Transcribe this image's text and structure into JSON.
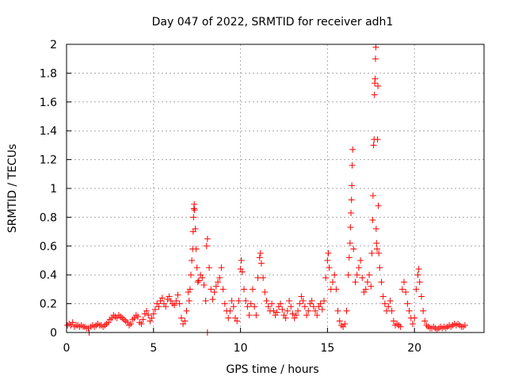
{
  "chart_data": {
    "type": "scatter",
    "title": "Day 047 of 2022, SRMTID for receiver adh1",
    "xlabel": "GPS time / hours",
    "ylabel": "SRMTID / TECUs",
    "xlim": [
      0,
      24
    ],
    "ylim": [
      0,
      2
    ],
    "x_ticks": [
      "0",
      "5",
      "10",
      "15",
      "20"
    ],
    "y_ticks": [
      "0",
      "0.2",
      "0.4",
      "0.6",
      "0.8",
      "1",
      "1.2",
      "1.4",
      "1.6",
      "1.8",
      "2"
    ],
    "grid": true,
    "marker": "+",
    "series": [
      {
        "name": "adh1",
        "color": "#ff0000",
        "points": [
          [
            0.05,
            0.05
          ],
          [
            0.15,
            0.06
          ],
          [
            0.25,
            0.05
          ],
          [
            0.35,
            0.07
          ],
          [
            0.45,
            0.04
          ],
          [
            0.55,
            0.05
          ],
          [
            0.65,
            0.05
          ],
          [
            0.75,
            0.04
          ],
          [
            0.85,
            0.05
          ],
          [
            0.95,
            0.04
          ],
          [
            1.05,
            0.04
          ],
          [
            1.15,
            0.03
          ],
          [
            1.25,
            0.03
          ],
          [
            1.3,
            0.0
          ],
          [
            1.4,
            0.04
          ],
          [
            1.5,
            0.05
          ],
          [
            1.6,
            0.04
          ],
          [
            1.7,
            0.05
          ],
          [
            1.8,
            0.06
          ],
          [
            1.9,
            0.05
          ],
          [
            2.0,
            0.05
          ],
          [
            2.1,
            0.04
          ],
          [
            2.2,
            0.05
          ],
          [
            2.3,
            0.06
          ],
          [
            2.4,
            0.07
          ],
          [
            2.5,
            0.09
          ],
          [
            2.6,
            0.1
          ],
          [
            2.7,
            0.12
          ],
          [
            2.8,
            0.11
          ],
          [
            2.9,
            0.1
          ],
          [
            3.0,
            0.12
          ],
          [
            3.1,
            0.11
          ],
          [
            3.2,
            0.1
          ],
          [
            3.3,
            0.09
          ],
          [
            3.4,
            0.08
          ],
          [
            3.5,
            0.07
          ],
          [
            3.6,
            0.05
          ],
          [
            3.7,
            0.06
          ],
          [
            3.8,
            0.09
          ],
          [
            3.9,
            0.1
          ],
          [
            4.0,
            0.12
          ],
          [
            4.1,
            0.11
          ],
          [
            4.2,
            0.07
          ],
          [
            4.3,
            0.06
          ],
          [
            4.4,
            0.09
          ],
          [
            4.5,
            0.13
          ],
          [
            4.6,
            0.15
          ],
          [
            4.7,
            0.12
          ],
          [
            4.8,
            0.08
          ],
          [
            4.9,
            0.1
          ],
          [
            5.0,
            0.13
          ],
          [
            5.1,
            0.16
          ],
          [
            5.2,
            0.2
          ],
          [
            5.3,
            0.18
          ],
          [
            5.4,
            0.22
          ],
          [
            5.5,
            0.24
          ],
          [
            5.6,
            0.2
          ],
          [
            5.7,
            0.18
          ],
          [
            5.8,
            0.23
          ],
          [
            5.9,
            0.25
          ],
          [
            6.0,
            0.22
          ],
          [
            6.1,
            0.2
          ],
          [
            6.2,
            0.19
          ],
          [
            6.3,
            0.22
          ],
          [
            6.4,
            0.26
          ],
          [
            6.5,
            0.2
          ],
          [
            6.6,
            0.1
          ],
          [
            6.7,
            0.06
          ],
          [
            6.8,
            0.08
          ],
          [
            6.9,
            0.15
          ],
          [
            7.0,
            0.28
          ],
          [
            7.05,
            0.22
          ],
          [
            7.1,
            0.3
          ],
          [
            7.15,
            0.4
          ],
          [
            7.2,
            0.5
          ],
          [
            7.25,
            0.58
          ],
          [
            7.28,
            0.7
          ],
          [
            7.3,
            0.8
          ],
          [
            7.32,
            0.86
          ],
          [
            7.34,
            0.89
          ],
          [
            7.36,
            0.85
          ],
          [
            7.4,
            0.72
          ],
          [
            7.45,
            0.58
          ],
          [
            7.5,
            0.45
          ],
          [
            7.55,
            0.35
          ],
          [
            7.6,
            0.36
          ],
          [
            7.7,
            0.4
          ],
          [
            7.8,
            0.38
          ],
          [
            7.9,
            0.33
          ],
          [
            8.0,
            0.22
          ],
          [
            8.05,
            0.6
          ],
          [
            8.1,
            0.65
          ],
          [
            8.1,
            0.0
          ],
          [
            8.2,
            0.45
          ],
          [
            8.3,
            0.3
          ],
          [
            8.4,
            0.23
          ],
          [
            8.5,
            0.28
          ],
          [
            8.6,
            0.32
          ],
          [
            8.7,
            0.35
          ],
          [
            8.8,
            0.38
          ],
          [
            8.9,
            0.45
          ],
          [
            9.0,
            0.3
          ],
          [
            9.1,
            0.2
          ],
          [
            9.2,
            0.15
          ],
          [
            9.3,
            0.1
          ],
          [
            9.4,
            0.15
          ],
          [
            9.5,
            0.22
          ],
          [
            9.6,
            0.18
          ],
          [
            9.7,
            0.1
          ],
          [
            9.8,
            0.08
          ],
          [
            9.9,
            0.22
          ],
          [
            10.0,
            0.44
          ],
          [
            10.05,
            0.5
          ],
          [
            10.1,
            0.42
          ],
          [
            10.2,
            0.3
          ],
          [
            10.3,
            0.22
          ],
          [
            10.4,
            0.18
          ],
          [
            10.5,
            0.12
          ],
          [
            10.6,
            0.2
          ],
          [
            10.7,
            0.3
          ],
          [
            10.8,
            0.18
          ],
          [
            10.9,
            0.12
          ],
          [
            11.0,
            0.38
          ],
          [
            11.1,
            0.52
          ],
          [
            11.15,
            0.55
          ],
          [
            11.2,
            0.48
          ],
          [
            11.3,
            0.38
          ],
          [
            11.4,
            0.28
          ],
          [
            11.5,
            0.22
          ],
          [
            11.6,
            0.18
          ],
          [
            11.7,
            0.15
          ],
          [
            11.8,
            0.2
          ],
          [
            11.9,
            0.15
          ],
          [
            12.0,
            0.12
          ],
          [
            12.1,
            0.14
          ],
          [
            12.2,
            0.18
          ],
          [
            12.3,
            0.2
          ],
          [
            12.4,
            0.16
          ],
          [
            12.5,
            0.12
          ],
          [
            12.6,
            0.1
          ],
          [
            12.7,
            0.15
          ],
          [
            12.8,
            0.22
          ],
          [
            12.9,
            0.18
          ],
          [
            13.0,
            0.13
          ],
          [
            13.1,
            0.1
          ],
          [
            13.2,
            0.12
          ],
          [
            13.3,
            0.15
          ],
          [
            13.4,
            0.2
          ],
          [
            13.5,
            0.25
          ],
          [
            13.6,
            0.22
          ],
          [
            13.7,
            0.18
          ],
          [
            13.8,
            0.12
          ],
          [
            13.9,
            0.15
          ],
          [
            14.0,
            0.2
          ],
          [
            14.1,
            0.22
          ],
          [
            14.2,
            0.18
          ],
          [
            14.3,
            0.15
          ],
          [
            14.4,
            0.12
          ],
          [
            14.5,
            0.18
          ],
          [
            14.6,
            0.2
          ],
          [
            14.7,
            0.16
          ],
          [
            14.8,
            0.22
          ],
          [
            14.9,
            0.38
          ],
          [
            15.0,
            0.5
          ],
          [
            15.05,
            0.55
          ],
          [
            15.1,
            0.45
          ],
          [
            15.2,
            0.3
          ],
          [
            15.3,
            0.35
          ],
          [
            15.4,
            0.4
          ],
          [
            15.5,
            0.3
          ],
          [
            15.6,
            0.15
          ],
          [
            15.7,
            0.08
          ],
          [
            15.8,
            0.05
          ],
          [
            15.9,
            0.04
          ],
          [
            16.0,
            0.06
          ],
          [
            16.1,
            0.15
          ],
          [
            16.2,
            0.4
          ],
          [
            16.25,
            0.52
          ],
          [
            16.3,
            0.62
          ],
          [
            16.32,
            0.73
          ],
          [
            16.35,
            0.83
          ],
          [
            16.38,
            0.92
          ],
          [
            16.4,
            1.02
          ],
          [
            16.42,
            1.16
          ],
          [
            16.45,
            1.27
          ],
          [
            16.5,
            0.58
          ],
          [
            16.6,
            0.35
          ],
          [
            16.7,
            0.4
          ],
          [
            16.8,
            0.45
          ],
          [
            16.9,
            0.5
          ],
          [
            17.0,
            0.38
          ],
          [
            17.1,
            0.28
          ],
          [
            17.2,
            0.3
          ],
          [
            17.3,
            0.35
          ],
          [
            17.4,
            0.4
          ],
          [
            17.5,
            0.32
          ],
          [
            17.55,
            0.55
          ],
          [
            17.6,
            0.78
          ],
          [
            17.62,
            0.95
          ],
          [
            17.65,
            1.3
          ],
          [
            17.68,
            1.34
          ],
          [
            17.7,
            1.65
          ],
          [
            17.72,
            1.73
          ],
          [
            17.74,
            1.76
          ],
          [
            17.76,
            1.9
          ],
          [
            17.78,
            1.98
          ],
          [
            17.8,
            0.72
          ],
          [
            17.82,
            0.62
          ],
          [
            17.85,
            0.58
          ],
          [
            17.88,
            1.34
          ],
          [
            17.9,
            1.71
          ],
          [
            17.92,
            0.88
          ],
          [
            17.95,
            0.55
          ],
          [
            18.0,
            0.45
          ],
          [
            18.1,
            0.35
          ],
          [
            18.2,
            0.25
          ],
          [
            18.3,
            0.2
          ],
          [
            18.4,
            0.15
          ],
          [
            18.5,
            0.18
          ],
          [
            18.6,
            0.22
          ],
          [
            18.7,
            0.15
          ],
          [
            18.8,
            0.08
          ],
          [
            18.9,
            0.05
          ],
          [
            19.0,
            0.06
          ],
          [
            19.1,
            0.05
          ],
          [
            19.2,
            0.04
          ],
          [
            19.3,
            0.3
          ],
          [
            19.4,
            0.35
          ],
          [
            19.5,
            0.28
          ],
          [
            19.6,
            0.2
          ],
          [
            19.7,
            0.15
          ],
          [
            19.8,
            0.1
          ],
          [
            19.9,
            0.06
          ],
          [
            20.0,
            0.1
          ],
          [
            20.1,
            0.3
          ],
          [
            20.2,
            0.4
          ],
          [
            20.25,
            0.44
          ],
          [
            20.3,
            0.35
          ],
          [
            20.4,
            0.25
          ],
          [
            20.5,
            0.15
          ],
          [
            20.6,
            0.08
          ],
          [
            20.7,
            0.05
          ],
          [
            20.8,
            0.04
          ],
          [
            20.9,
            0.03
          ],
          [
            21.0,
            0.03
          ],
          [
            21.1,
            0.04
          ],
          [
            21.2,
            0.03
          ],
          [
            21.3,
            0.02
          ],
          [
            21.4,
            0.03
          ],
          [
            21.5,
            0.04
          ],
          [
            21.6,
            0.03
          ],
          [
            21.7,
            0.04
          ],
          [
            21.8,
            0.03
          ],
          [
            21.9,
            0.04
          ],
          [
            22.0,
            0.05
          ],
          [
            22.1,
            0.04
          ],
          [
            22.2,
            0.05
          ],
          [
            22.3,
            0.06
          ],
          [
            22.4,
            0.05
          ],
          [
            22.5,
            0.06
          ],
          [
            22.6,
            0.05
          ],
          [
            22.7,
            0.04
          ],
          [
            22.8,
            0.04
          ],
          [
            22.9,
            0.05
          ]
        ]
      }
    ]
  }
}
